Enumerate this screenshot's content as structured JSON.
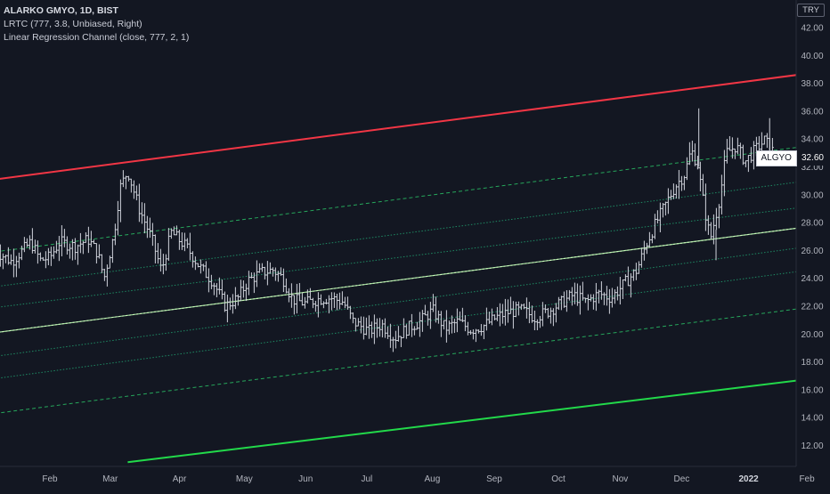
{
  "legend": {
    "title": "ALARKO GMYO, 1D, BIST",
    "line2": "LRTC (777, 3.8, Unbiased, Right)",
    "line3": "Linear Regression Channel (close, 777, 2, 1)"
  },
  "currency_badge": "TRY",
  "last_price": {
    "symbol": "ALGYO",
    "value": "32.60"
  },
  "chart_data": {
    "type": "ohlc-bar",
    "yaxis": {
      "ticks": [
        12,
        14,
        16,
        18,
        20,
        22,
        24,
        26,
        28,
        30,
        32,
        34,
        36,
        38,
        40,
        42
      ],
      "ylim": [
        10.5,
        43.5
      ],
      "side": "right"
    },
    "xaxis": {
      "ticks": [
        {
          "label": "Feb",
          "t": 0.0
        },
        {
          "label": "Mar",
          "t": 0.0946
        },
        {
          "label": "Apr",
          "t": 0.2031
        },
        {
          "label": "May",
          "t": 0.3047
        },
        {
          "label": "Jun",
          "t": 0.4009
        },
        {
          "label": "Jul",
          "t": 0.4967
        },
        {
          "label": "Aug",
          "t": 0.5993
        },
        {
          "label": "Sep",
          "t": 0.6964
        },
        {
          "label": "Oct",
          "t": 0.797
        },
        {
          "label": "Nov",
          "t": 0.8938
        },
        {
          "label": "Dec",
          "t": 0.9901
        },
        {
          "label": "2022",
          "t": 1.0951,
          "bold": true
        },
        {
          "label": "Feb",
          "t": 1.1864
        }
      ]
    },
    "regression_lines": [
      {
        "name": "upper",
        "color": "#f23645",
        "style": "solid",
        "start": [
          -0.086,
          31.1
        ],
        "end": [
          1.338,
          39.6
        ]
      },
      {
        "name": "lower",
        "color": "#22d94a",
        "style": "solid",
        "start": [
          0.122,
          10.8
        ],
        "end": [
          1.338,
          17.6
        ]
      },
      {
        "name": "mid",
        "color": "#9bdd9b",
        "style": "solid",
        "start": [
          -0.086,
          20.1
        ],
        "end": [
          1.338,
          28.6
        ]
      },
      {
        "name": "dev+2",
        "color": "#26a65b",
        "style": "dashed",
        "start": [
          -0.086,
          25.9
        ],
        "end": [
          1.338,
          34.4
        ]
      },
      {
        "name": "dev-2",
        "color": "#26a65b",
        "style": "dashed",
        "start": [
          -0.086,
          14.3
        ],
        "end": [
          1.338,
          22.8
        ]
      },
      {
        "name": "dev+1.5",
        "color": "#1e8a63",
        "style": "dotted",
        "start": [
          -0.086,
          23.4
        ],
        "end": [
          1.338,
          31.9
        ]
      },
      {
        "name": "dev+1",
        "color": "#1e8a63",
        "style": "dotted",
        "start": [
          -0.086,
          21.9
        ],
        "end": [
          1.338,
          30.0
        ]
      },
      {
        "name": "dev-1",
        "color": "#1e8a63",
        "style": "dotted",
        "start": [
          -0.086,
          18.4
        ],
        "end": [
          1.338,
          27.2
        ]
      },
      {
        "name": "dev-1.5",
        "color": "#1e8a63",
        "style": "dotted",
        "start": [
          -0.086,
          16.8
        ],
        "end": [
          1.338,
          25.5
        ]
      }
    ],
    "price_path": [
      [
        -0.086,
        26.0
      ],
      [
        -0.06,
        25.2
      ],
      [
        -0.03,
        26.6
      ],
      [
        -0.015,
        25.3
      ],
      [
        0.0,
        25.5
      ],
      [
        0.015,
        26.6
      ],
      [
        0.04,
        26.3
      ],
      [
        0.06,
        26.8
      ],
      [
        0.075,
        25.8
      ],
      [
        0.085,
        24.0
      ],
      [
        0.1,
        27.0
      ],
      [
        0.11,
        30.5
      ],
      [
        0.122,
        31.7
      ],
      [
        0.14,
        29.0
      ],
      [
        0.16,
        26.8
      ],
      [
        0.175,
        24.5
      ],
      [
        0.19,
        27.3
      ],
      [
        0.215,
        26.2
      ],
      [
        0.235,
        24.8
      ],
      [
        0.255,
        23.8
      ],
      [
        0.275,
        22.0
      ],
      [
        0.295,
        22.6
      ],
      [
        0.31,
        23.8
      ],
      [
        0.33,
        24.4
      ],
      [
        0.35,
        24.6
      ],
      [
        0.365,
        24.0
      ],
      [
        0.38,
        22.5
      ],
      [
        0.4,
        22.2
      ],
      [
        0.42,
        22.5
      ],
      [
        0.44,
        22.6
      ],
      [
        0.46,
        22.3
      ],
      [
        0.475,
        20.9
      ],
      [
        0.5,
        20.2
      ],
      [
        0.52,
        20.7
      ],
      [
        0.54,
        19.7
      ],
      [
        0.56,
        20.4
      ],
      [
        0.58,
        20.9
      ],
      [
        0.6,
        21.7
      ],
      [
        0.62,
        20.4
      ],
      [
        0.64,
        20.9
      ],
      [
        0.66,
        20.3
      ],
      [
        0.68,
        20.6
      ],
      [
        0.7,
        21.2
      ],
      [
        0.72,
        21.6
      ],
      [
        0.74,
        21.7
      ],
      [
        0.76,
        21.2
      ],
      [
        0.78,
        21.6
      ],
      [
        0.8,
        22.2
      ],
      [
        0.82,
        22.8
      ],
      [
        0.84,
        22.3
      ],
      [
        0.86,
        22.9
      ],
      [
        0.88,
        22.6
      ],
      [
        0.9,
        23.6
      ],
      [
        0.92,
        24.6
      ],
      [
        0.935,
        26.5
      ],
      [
        0.95,
        28.0
      ],
      [
        0.965,
        29.3
      ],
      [
        0.98,
        30.6
      ],
      [
        0.995,
        31.5
      ],
      [
        1.005,
        33.2
      ],
      [
        1.015,
        32.2
      ],
      [
        1.025,
        29.2
      ],
      [
        1.035,
        26.8
      ],
      [
        1.05,
        29.8
      ],
      [
        1.06,
        33.0
      ],
      [
        1.075,
        33.5
      ],
      [
        1.09,
        32.4
      ],
      [
        1.105,
        33.2
      ],
      [
        1.12,
        33.9
      ],
      [
        1.135,
        33.0
      ]
    ],
    "spikes": [
      {
        "t": 1.017,
        "high": 36.2,
        "low": 32.0
      },
      {
        "t": 1.044,
        "high": 27.5,
        "low": 25.3
      },
      {
        "t": 1.128,
        "high": 35.5,
        "low": 33.2
      }
    ],
    "last_price_value": 32.6,
    "grid": false
  }
}
